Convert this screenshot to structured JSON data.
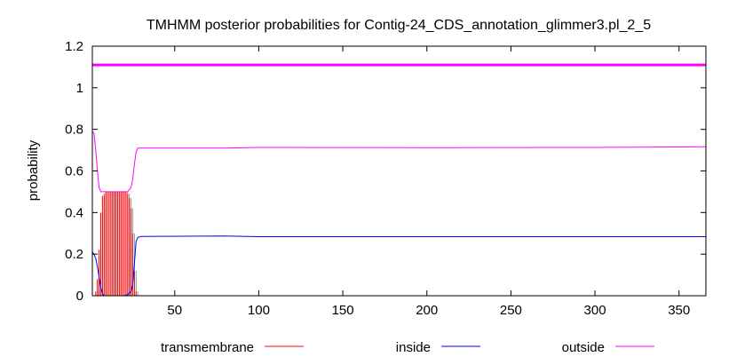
{
  "chart_data": {
    "type": "line",
    "title": "TMHMM posterior probabilities for Contig-24_CDS_annotation_glimmer3.pl_2_5",
    "xlabel": "",
    "ylabel": "probability",
    "xlim": [
      1,
      366
    ],
    "ylim": [
      0,
      1.2
    ],
    "x_ticks": [
      50,
      100,
      150,
      200,
      250,
      300,
      350
    ],
    "y_ticks": [
      0,
      0.2,
      0.4,
      0.6,
      0.8,
      1,
      1.2
    ],
    "y_tick_labels": [
      "0",
      "0.2",
      "0.4",
      "0.6",
      "0.8",
      "1",
      "1.2"
    ],
    "grid": false,
    "legend_position": "bottom",
    "reference_line": {
      "y": 1.11,
      "color": "#ff00ff"
    },
    "series": [
      {
        "name": "transmembrane",
        "color": "#ff0000",
        "style": "impulses",
        "points": [
          [
            1,
            0.0
          ],
          [
            2,
            0.0
          ],
          [
            3,
            0.02
          ],
          [
            4,
            0.08
          ],
          [
            5,
            0.22
          ],
          [
            6,
            0.4
          ],
          [
            7,
            0.48
          ],
          [
            8,
            0.49
          ],
          [
            9,
            0.5
          ],
          [
            10,
            0.5
          ],
          [
            11,
            0.5
          ],
          [
            12,
            0.5
          ],
          [
            13,
            0.5
          ],
          [
            14,
            0.5
          ],
          [
            15,
            0.5
          ],
          [
            16,
            0.5
          ],
          [
            17,
            0.5
          ],
          [
            18,
            0.5
          ],
          [
            19,
            0.5
          ],
          [
            20,
            0.5
          ],
          [
            21,
            0.5
          ],
          [
            22,
            0.49
          ],
          [
            23,
            0.47
          ],
          [
            24,
            0.42
          ],
          [
            25,
            0.3
          ],
          [
            26,
            0.12
          ],
          [
            27,
            0.02
          ],
          [
            28,
            0.0
          ]
        ]
      },
      {
        "name": "inside",
        "color": "#0000ff",
        "style": "line",
        "points": [
          [
            1,
            0.21
          ],
          [
            2,
            0.2
          ],
          [
            3,
            0.18
          ],
          [
            4,
            0.14
          ],
          [
            5,
            0.09
          ],
          [
            6,
            0.04
          ],
          [
            7,
            0.01
          ],
          [
            8,
            0.0
          ],
          [
            20,
            0.0
          ],
          [
            22,
            0.005
          ],
          [
            24,
            0.02
          ],
          [
            25,
            0.05
          ],
          [
            26,
            0.15
          ],
          [
            27,
            0.26
          ],
          [
            28,
            0.28
          ],
          [
            30,
            0.285
          ],
          [
            80,
            0.287
          ],
          [
            100,
            0.284
          ],
          [
            366,
            0.284
          ]
        ]
      },
      {
        "name": "outside",
        "color": "#ff00ff",
        "style": "line",
        "points": [
          [
            1,
            0.79
          ],
          [
            2,
            0.78
          ],
          [
            3,
            0.7
          ],
          [
            4,
            0.6
          ],
          [
            5,
            0.52
          ],
          [
            6,
            0.5
          ],
          [
            8,
            0.5
          ],
          [
            22,
            0.5
          ],
          [
            24,
            0.52
          ],
          [
            25,
            0.56
          ],
          [
            26,
            0.63
          ],
          [
            27,
            0.69
          ],
          [
            28,
            0.71
          ],
          [
            30,
            0.71
          ],
          [
            80,
            0.71
          ],
          [
            100,
            0.713
          ],
          [
            200,
            0.712
          ],
          [
            300,
            0.713
          ],
          [
            366,
            0.716
          ]
        ]
      }
    ]
  }
}
